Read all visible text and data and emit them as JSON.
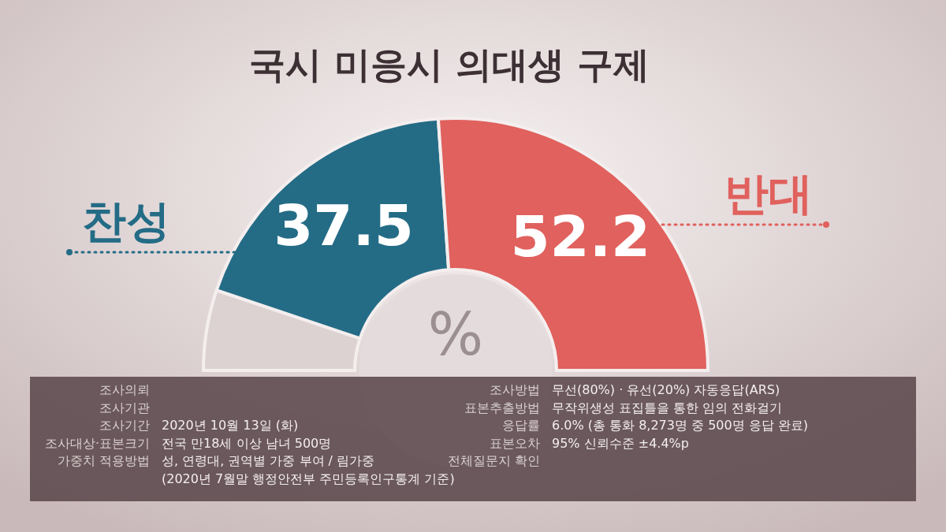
{
  "chart_data": {
    "type": "donut",
    "title": "국시 미응시 의대생 구제",
    "categories": [
      null,
      "찬성",
      "반대"
    ],
    "values": [
      10.3,
      37.5,
      52.2
    ],
    "colors": [
      "#ddd2d2",
      "#246c86",
      "#e0615d"
    ],
    "value_labels": [
      null,
      "37.5",
      "52.2"
    ],
    "annotations": [
      "%",
      "조사의뢰",
      "조사기관",
      "조사기간",
      "2020년 10월 13일 (화)",
      "조사대상·표본크기",
      "전국 만18세 이상 남녀 500명",
      "가중치 적용방법",
      "성, 연령대, 권역별 가중 부여 / 림가중",
      "(2020년 7월말 행정안전부 주민등록인구통계 기준)",
      "조사방법",
      "무선(80%) · 유선(20%) 자동응답(ARS)",
      "표본추출방법",
      "무작위생성 표집틀을 통한 임의 전화걸기",
      "응답률",
      "6.0% (총 통화 8,273명 중 500명 응답 완료)",
      "표본오차",
      "95% 신뢰수준 ±4.4%p",
      "전체질문지 확인"
    ]
  }
}
